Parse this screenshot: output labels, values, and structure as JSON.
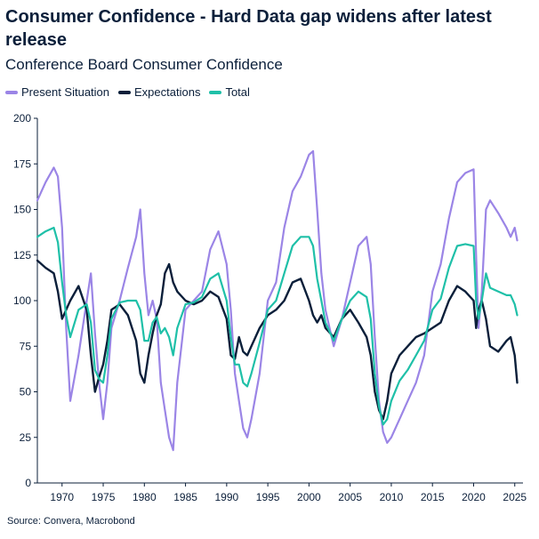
{
  "chart_data": {
    "type": "line",
    "title": "Consumer Confidence - Hard Data gap widens after latest release",
    "subtitle": "Conference Board Consumer Confidence",
    "source": "Source: Convera, Macrobond",
    "xlabel": "",
    "ylabel": "",
    "xlim": [
      1967,
      2026
    ],
    "ylim": [
      0,
      200
    ],
    "x_ticks": [
      "1970",
      "1975",
      "1980",
      "1985",
      "1990",
      "1995",
      "2000",
      "2005",
      "2010",
      "2015",
      "2020",
      "2025"
    ],
    "y_ticks": [
      "0",
      "25",
      "50",
      "75",
      "100",
      "125",
      "150",
      "175",
      "200"
    ],
    "legend_position": "top-left",
    "grid": false,
    "series": [
      {
        "name": "Present Situation",
        "color": "#9b85e6",
        "x": [
          1967,
          1968,
          1969,
          1969.5,
          1970,
          1970.5,
          1971,
          1972,
          1973,
          1973.5,
          1974,
          1974.5,
          1975,
          1975.5,
          1976,
          1977,
          1978,
          1979,
          1979.5,
          1980,
          1980.5,
          1981,
          1981.5,
          1982,
          1982.5,
          1983,
          1983.5,
          1984,
          1985,
          1986,
          1987,
          1988,
          1989,
          1990,
          1990.5,
          1991,
          1991.5,
          1992,
          1992.5,
          1993,
          1994,
          1995,
          1996,
          1997,
          1998,
          1999,
          2000,
          2000.5,
          2001,
          2001.5,
          2002,
          2003,
          2004,
          2005,
          2006,
          2007,
          2007.5,
          2008,
          2008.5,
          2009,
          2009.5,
          2010,
          2011,
          2012,
          2013,
          2014,
          2015,
          2016,
          2017,
          2018,
          2019,
          2020,
          2020.3,
          2020.6,
          2021,
          2021.5,
          2022,
          2023,
          2024,
          2024.5,
          2025,
          2025.3
        ],
        "y": [
          155,
          165,
          173,
          168,
          140,
          85,
          45,
          70,
          100,
          115,
          82,
          55,
          35,
          55,
          85,
          100,
          118,
          135,
          150,
          115,
          92,
          100,
          90,
          55,
          40,
          25,
          18,
          55,
          95,
          100,
          105,
          128,
          138,
          120,
          95,
          60,
          45,
          30,
          25,
          35,
          60,
          100,
          110,
          140,
          160,
          168,
          180,
          182,
          150,
          115,
          95,
          75,
          90,
          110,
          130,
          135,
          120,
          80,
          45,
          28,
          22,
          25,
          35,
          45,
          55,
          70,
          105,
          120,
          145,
          165,
          170,
          172,
          125,
          85,
          105,
          150,
          155,
          148,
          140,
          135,
          140,
          133
        ]
      },
      {
        "name": "Expectations",
        "color": "#0b1f3a",
        "x": [
          1967,
          1968,
          1969,
          1969.5,
          1970,
          1970.5,
          1971,
          1972,
          1973,
          1973.5,
          1974,
          1974.5,
          1975,
          1975.5,
          1976,
          1977,
          1978,
          1979,
          1979.5,
          1980,
          1980.5,
          1981,
          1981.5,
          1982,
          1982.5,
          1983,
          1983.5,
          1984,
          1985,
          1986,
          1987,
          1988,
          1989,
          1990,
          1990.5,
          1991,
          1991.5,
          1992,
          1992.5,
          1993,
          1994,
          1995,
          1996,
          1997,
          1998,
          1999,
          2000,
          2000.5,
          2001,
          2001.5,
          2002,
          2003,
          2004,
          2005,
          2006,
          2007,
          2007.5,
          2008,
          2008.5,
          2009,
          2009.5,
          2010,
          2011,
          2012,
          2013,
          2014,
          2015,
          2016,
          2017,
          2018,
          2019,
          2020,
          2020.3,
          2020.6,
          2021,
          2021.5,
          2022,
          2023,
          2024,
          2024.5,
          2025,
          2025.3
        ],
        "y": [
          122,
          118,
          115,
          105,
          90,
          95,
          100,
          108,
          95,
          70,
          50,
          58,
          65,
          78,
          95,
          98,
          92,
          78,
          60,
          55,
          70,
          82,
          92,
          98,
          115,
          120,
          110,
          105,
          100,
          98,
          100,
          105,
          102,
          90,
          70,
          68,
          80,
          72,
          70,
          75,
          85,
          92,
          95,
          100,
          110,
          112,
          100,
          92,
          88,
          92,
          85,
          80,
          90,
          95,
          88,
          80,
          70,
          50,
          40,
          35,
          45,
          60,
          70,
          75,
          80,
          82,
          85,
          88,
          100,
          108,
          105,
          100,
          85,
          95,
          100,
          90,
          75,
          72,
          78,
          80,
          70,
          55
        ]
      },
      {
        "name": "Total",
        "color": "#1fc0a8",
        "x": [
          1967,
          1968,
          1969,
          1969.5,
          1970,
          1970.5,
          1971,
          1972,
          1973,
          1973.5,
          1974,
          1974.5,
          1975,
          1975.5,
          1976,
          1977,
          1978,
          1979,
          1979.5,
          1980,
          1980.5,
          1981,
          1981.5,
          1982,
          1982.5,
          1983,
          1983.5,
          1984,
          1985,
          1986,
          1987,
          1988,
          1989,
          1990,
          1990.5,
          1991,
          1991.5,
          1992,
          1992.5,
          1993,
          1994,
          1995,
          1996,
          1997,
          1998,
          1999,
          2000,
          2000.5,
          2001,
          2001.5,
          2002,
          2003,
          2004,
          2005,
          2006,
          2007,
          2007.5,
          2008,
          2008.5,
          2009,
          2009.5,
          2010,
          2011,
          2012,
          2013,
          2014,
          2015,
          2016,
          2017,
          2018,
          2019,
          2020,
          2020.3,
          2020.6,
          2021,
          2021.5,
          2022,
          2023,
          2024,
          2024.5,
          2025,
          2025.3
        ],
        "y": [
          135,
          138,
          140,
          132,
          110,
          92,
          80,
          95,
          98,
          88,
          62,
          57,
          55,
          70,
          90,
          99,
          100,
          100,
          95,
          78,
          78,
          88,
          91,
          82,
          85,
          80,
          70,
          85,
          98,
          99,
          102,
          112,
          115,
          100,
          80,
          65,
          65,
          55,
          53,
          60,
          77,
          95,
          100,
          115,
          130,
          135,
          135,
          130,
          112,
          100,
          88,
          78,
          90,
          100,
          105,
          102,
          90,
          60,
          42,
          32,
          35,
          45,
          56,
          62,
          70,
          78,
          95,
          101,
          118,
          130,
          131,
          130,
          100,
          90,
          100,
          115,
          107,
          105,
          103,
          103,
          98,
          92
        ]
      }
    ]
  }
}
